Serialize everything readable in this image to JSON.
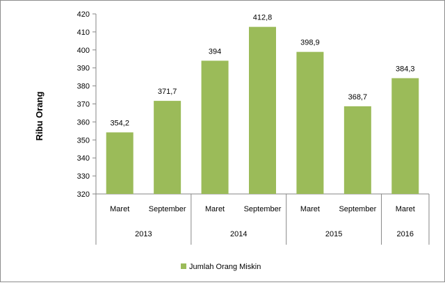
{
  "chart_data": {
    "type": "bar",
    "title": "",
    "xlabel": "",
    "ylabel": "Ribu Orang",
    "ylim": [
      320,
      420
    ],
    "yticks": [
      320,
      330,
      340,
      350,
      360,
      370,
      380,
      390,
      400,
      410,
      420
    ],
    "grid": false,
    "legend_position": "bottom",
    "categories": [
      "Maret",
      "September",
      "Maret",
      "September",
      "Maret",
      "September",
      "Maret"
    ],
    "groups": [
      {
        "label": "2013",
        "span": 2
      },
      {
        "label": "2014",
        "span": 2
      },
      {
        "label": "2015",
        "span": 2
      },
      {
        "label": "2016",
        "span": 1
      }
    ],
    "series": [
      {
        "name": "Jumlah Orang Miskin",
        "color": "#9bbb59",
        "values": [
          354.2,
          371.7,
          394,
          412.8,
          398.9,
          368.7,
          384.3
        ],
        "value_labels": [
          "354,2",
          "371,7",
          "394",
          "412,8",
          "398,9",
          "368,7",
          "384,3"
        ]
      }
    ]
  }
}
